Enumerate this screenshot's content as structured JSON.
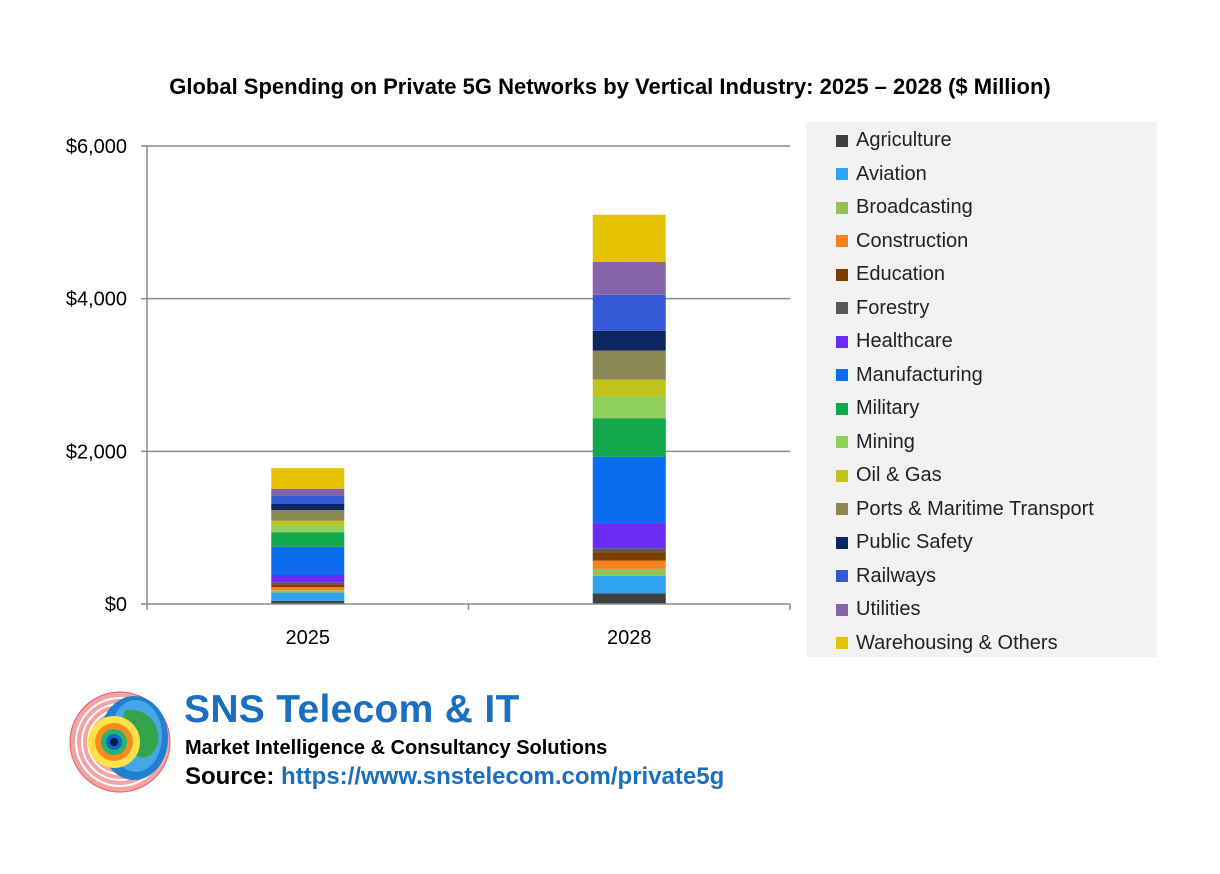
{
  "chart_data": {
    "type": "bar",
    "stacked": true,
    "title": "Global Spending on Private 5G Networks by Vertical Industry: 2025 – 2028 ($ Million)",
    "categories": [
      "2025",
      "2028"
    ],
    "ylim": [
      0,
      6000
    ],
    "yticks": [
      0,
      2000,
      4000,
      6000
    ],
    "ytick_labels": [
      "$0",
      "$2,000",
      "$4,000",
      "$6,000"
    ],
    "grid": true,
    "legend_position": "right",
    "series": [
      {
        "name": "Agriculture",
        "color": "#404040",
        "values": [
          40,
          140
        ]
      },
      {
        "name": "Aviation",
        "color": "#2ea3f2",
        "values": [
          110,
          230
        ]
      },
      {
        "name": "Broadcasting",
        "color": "#92c353",
        "values": [
          30,
          90
        ]
      },
      {
        "name": "Construction",
        "color": "#f58220",
        "values": [
          40,
          110
        ]
      },
      {
        "name": "Education",
        "color": "#7b3f00",
        "values": [
          40,
          110
        ]
      },
      {
        "name": "Forestry",
        "color": "#595959",
        "values": [
          20,
          50
        ]
      },
      {
        "name": "Healthcare",
        "color": "#6a2cf5",
        "values": [
          100,
          330
        ]
      },
      {
        "name": "Manufacturing",
        "color": "#0a6df0",
        "values": [
          370,
          870
        ]
      },
      {
        "name": "Military",
        "color": "#12a84b",
        "values": [
          190,
          500
        ]
      },
      {
        "name": "Mining",
        "color": "#8fd15a",
        "values": [
          90,
          290
        ]
      },
      {
        "name": "Oil & Gas",
        "color": "#bfc31a",
        "values": [
          60,
          220
        ]
      },
      {
        "name": "Ports & Maritime Transport",
        "color": "#8b8655",
        "values": [
          140,
          380
        ]
      },
      {
        "name": "Public Safety",
        "color": "#0b2661",
        "values": [
          80,
          260
        ]
      },
      {
        "name": "Railways",
        "color": "#3559d6",
        "values": [
          110,
          470
        ]
      },
      {
        "name": "Utilities",
        "color": "#8664aa",
        "values": [
          90,
          430
        ]
      },
      {
        "name": "Warehousing & Others",
        "color": "#e6c300",
        "values": [
          270,
          620
        ]
      }
    ]
  },
  "branding": {
    "name": "SNS Telecom & IT",
    "tagline": "Market Intelligence & Consultancy Solutions",
    "source_label": "Source:",
    "source_url": "https://www.snstelecom.com/private5g"
  }
}
